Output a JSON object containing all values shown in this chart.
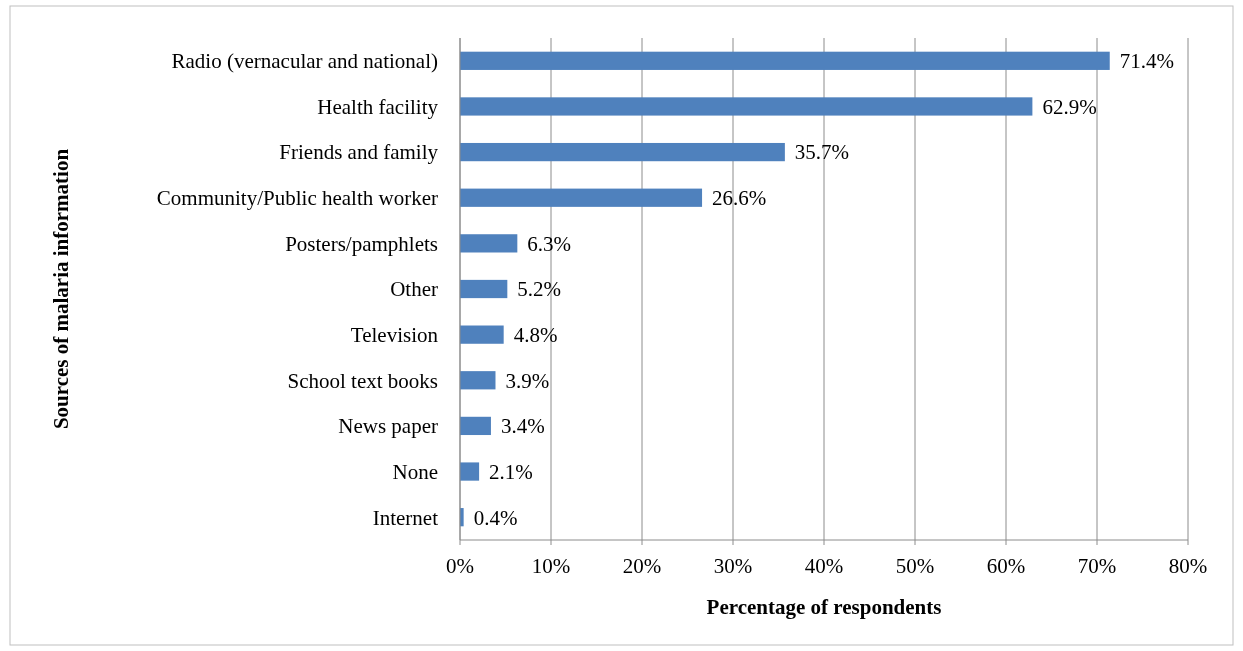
{
  "chart_data": {
    "type": "bar",
    "orientation": "horizontal",
    "xlabel": "Percentage of respondents",
    "ylabel": "Sources of malaria information",
    "categories": [
      "Radio (vernacular and national)",
      "Health facility",
      "Friends and family",
      "Community/Public health worker",
      "Posters/pamphlets",
      "Other",
      "Television",
      "School text books",
      "News paper",
      "None",
      "Internet"
    ],
    "values": [
      71.4,
      62.9,
      35.7,
      26.6,
      6.3,
      5.2,
      4.8,
      3.9,
      3.4,
      2.1,
      0.4
    ],
    "value_labels": [
      "71.4%",
      "62.9%",
      "35.7%",
      "26.6%",
      "6.3%",
      "5.2%",
      "4.8%",
      "3.9%",
      "3.4%",
      "2.1%",
      "0.4%"
    ],
    "color": "#4f81bd",
    "xlim": [
      0,
      80
    ],
    "xticks": [
      {
        "value": 0,
        "label": "0%"
      },
      {
        "value": 10,
        "label": "10%"
      },
      {
        "value": 20,
        "label": "20%"
      },
      {
        "value": 30,
        "label": "30%"
      },
      {
        "value": 40,
        "label": "40%"
      },
      {
        "value": 50,
        "label": "50%"
      },
      {
        "value": 60,
        "label": "60%"
      },
      {
        "value": 70,
        "label": "70%"
      },
      {
        "value": 80,
        "label": "80%"
      }
    ],
    "grid": "x"
  }
}
